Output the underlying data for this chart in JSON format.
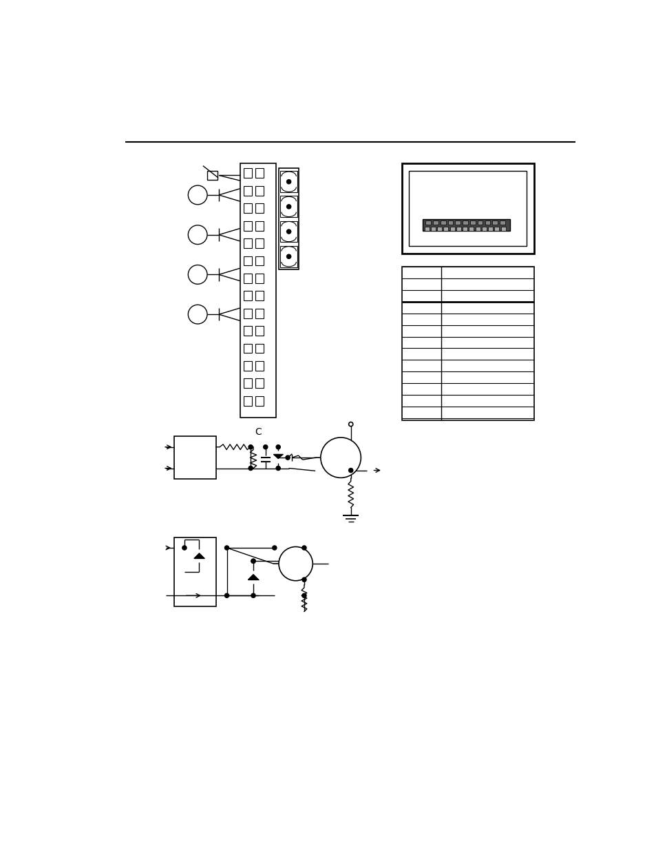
{
  "bg_color": "#ffffff",
  "page_width": 9.54,
  "page_height": 12.35
}
